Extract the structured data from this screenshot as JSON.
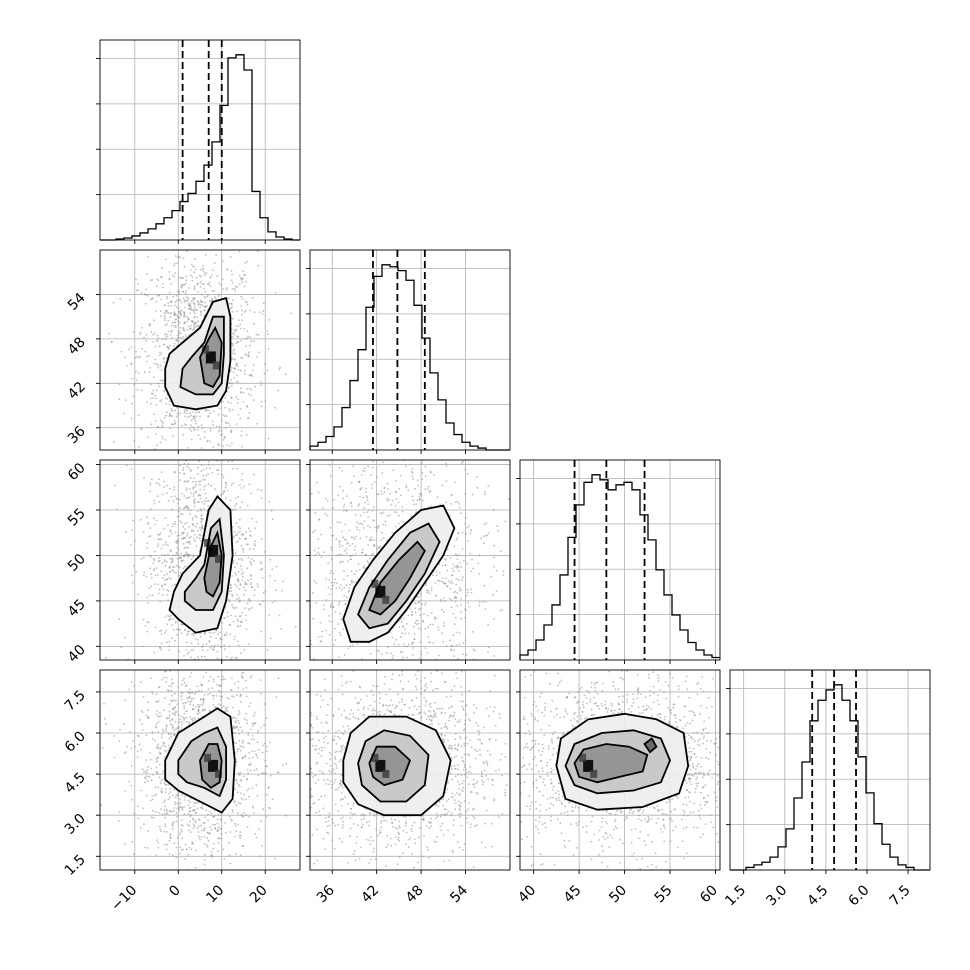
{
  "chart_data": {
    "type": "corner",
    "title": "",
    "parameters": [
      {
        "range": [
          -18,
          28
        ],
        "ticks": [
          -10,
          0,
          10,
          20
        ],
        "tick_labels": [
          "−10",
          "0",
          "10",
          "20"
        ],
        "quantiles": [
          1,
          7,
          10
        ],
        "peak": 8,
        "sigma": 5
      },
      {
        "range": [
          33,
          60
        ],
        "ticks": [
          36,
          42,
          48,
          54
        ],
        "tick_labels": [
          "36",
          "42",
          "48",
          "54"
        ],
        "quantiles": [
          41.5,
          44.8,
          48.5
        ],
        "peak": 44,
        "sigma": 4
      },
      {
        "range": [
          38.5,
          60.5
        ],
        "ticks": [
          40,
          45,
          50,
          55,
          60
        ],
        "tick_labels": [
          "40",
          "45",
          "50",
          "55",
          "60"
        ],
        "quantiles": [
          44.5,
          48,
          52.2
        ],
        "peak": 47.5,
        "sigma": 4
      },
      {
        "range": [
          1,
          8.3
        ],
        "ticks": [
          1.5,
          3.0,
          4.5,
          6.0,
          7.5
        ],
        "tick_labels": [
          "1.5",
          "3.0",
          "4.5",
          "6.0",
          "7.5"
        ],
        "quantiles": [
          4.0,
          4.8,
          5.6
        ],
        "peak": 4.8,
        "sigma": 0.8
      }
    ],
    "histograms": [
      {
        "edges_start": -18,
        "bin_width": 1.84,
        "counts": [
          0,
          0,
          1,
          2,
          4,
          7,
          11,
          16,
          22,
          29,
          38,
          46,
          58,
          74,
          97,
          133,
          180,
          183,
          168,
          48,
          22,
          8,
          3,
          1,
          0
        ]
      },
      {
        "edges_start": 33,
        "bin_width": 1.08,
        "counts": [
          2,
          4,
          7,
          12,
          22,
          36,
          52,
          74,
          90,
          96,
          95,
          93,
          88,
          75,
          58,
          40,
          26,
          14,
          8,
          4,
          2,
          1,
          0,
          0,
          0
        ]
      },
      {
        "edges_start": 38.5,
        "bin_width": 0.88,
        "counts": [
          2,
          4,
          8,
          14,
          22,
          34,
          49,
          62,
          71,
          74,
          72,
          68,
          70,
          71,
          68,
          58,
          48,
          36,
          26,
          18,
          12,
          7,
          4,
          2,
          1
        ]
      },
      {
        "edges_start": 1,
        "bin_width": 0.292,
        "counts": [
          0,
          0,
          1,
          2,
          3,
          5,
          9,
          16,
          28,
          42,
          58,
          66,
          70,
          72,
          66,
          58,
          44,
          30,
          18,
          10,
          5,
          2,
          1,
          0,
          0
        ]
      }
    ],
    "density_panels": [
      {
        "row": 1,
        "col": 0,
        "center": [
          7.5,
          45.5
        ],
        "contours": [
          [
            [
              -2,
              46
            ],
            [
              1,
              47.5
            ],
            [
              5,
              49.5
            ],
            [
              8,
              53
            ],
            [
              11,
              53.5
            ],
            [
              12,
              51
            ],
            [
              12,
              45
            ],
            [
              11,
              41
            ],
            [
              9,
              39
            ],
            [
              4,
              38.5
            ],
            [
              -1,
              39
            ],
            [
              -3,
              41.5
            ],
            [
              -3,
              44
            ]
          ],
          [
            [
              1,
              44
            ],
            [
              3,
              45.5
            ],
            [
              6,
              47.5
            ],
            [
              8,
              51
            ],
            [
              10.5,
              51
            ],
            [
              10.5,
              46
            ],
            [
              10,
              42
            ],
            [
              8,
              40.5
            ],
            [
              4,
              40.5
            ],
            [
              0.5,
              41.5
            ]
          ],
          [
            [
              5,
              45.5
            ],
            [
              7,
              48
            ],
            [
              8.5,
              49.5
            ],
            [
              10,
              47.5
            ],
            [
              9.5,
              43
            ],
            [
              8,
              41.5
            ],
            [
              6,
              42
            ]
          ]
        ]
      },
      {
        "row": 2,
        "col": 0,
        "center": [
          8,
          50.5
        ],
        "contours": [
          [
            [
              -1,
              46
            ],
            [
              1,
              48
            ],
            [
              5,
              50
            ],
            [
              7,
              55
            ],
            [
              9,
              56.5
            ],
            [
              12,
              55
            ],
            [
              12.5,
              50
            ],
            [
              11,
              45
            ],
            [
              9,
              42
            ],
            [
              4,
              41.5
            ],
            [
              0,
              43
            ],
            [
              -2,
              44
            ]
          ],
          [
            [
              1.5,
              46
            ],
            [
              4,
              47.5
            ],
            [
              6,
              49
            ],
            [
              7.5,
              53
            ],
            [
              9.5,
              54
            ],
            [
              10.5,
              50
            ],
            [
              10,
              46
            ],
            [
              8,
              44
            ],
            [
              4,
              44
            ],
            [
              1.5,
              45
            ]
          ],
          [
            [
              6,
              47.5
            ],
            [
              7.5,
              51
            ],
            [
              9,
              52.5
            ],
            [
              10,
              50
            ],
            [
              9.5,
              47
            ],
            [
              8,
              45.5
            ],
            [
              6.5,
              46
            ]
          ]
        ]
      },
      {
        "row": 2,
        "col": 1,
        "center": [
          42.5,
          46
        ],
        "contours": [
          [
            [
              37.5,
              43
            ],
            [
              39,
              46.5
            ],
            [
              41.5,
              49.5
            ],
            [
              44.5,
              52.5
            ],
            [
              48,
              55
            ],
            [
              51,
              55.5
            ],
            [
              52.5,
              53
            ],
            [
              51,
              50
            ],
            [
              48.5,
              47
            ],
            [
              46,
              44
            ],
            [
              43.5,
              41.5
            ],
            [
              41,
              40.5
            ],
            [
              38.5,
              40.5
            ]
          ],
          [
            [
              39.5,
              43.5
            ],
            [
              41,
              46.5
            ],
            [
              43.5,
              49.5
            ],
            [
              46.5,
              52.5
            ],
            [
              49,
              53.5
            ],
            [
              50.5,
              51.5
            ],
            [
              48.5,
              48
            ],
            [
              46,
              45
            ],
            [
              43.5,
              42.5
            ],
            [
              41,
              42
            ]
          ],
          [
            [
              41,
              44
            ],
            [
              42.5,
              47
            ],
            [
              45,
              49.5
            ],
            [
              47.5,
              51.5
            ],
            [
              48.5,
              50.5
            ],
            [
              46.5,
              47.5
            ],
            [
              44.5,
              45
            ],
            [
              42.5,
              43.5
            ]
          ]
        ]
      },
      {
        "row": 3,
        "col": 0,
        "center": [
          8,
          4.8
        ],
        "contours": [
          [
            [
              -3,
              5
            ],
            [
              0,
              6
            ],
            [
              4,
              6.4
            ],
            [
              9,
              6.9
            ],
            [
              12,
              6.6
            ],
            [
              13,
              5
            ],
            [
              12.5,
              3.6
            ],
            [
              10,
              3.1
            ],
            [
              5,
              3.5
            ],
            [
              0,
              3.9
            ],
            [
              -3,
              4.3
            ]
          ],
          [
            [
              0,
              5
            ],
            [
              3,
              5.7
            ],
            [
              6,
              6
            ],
            [
              9,
              6.2
            ],
            [
              11,
              5.5
            ],
            [
              11,
              4.3
            ],
            [
              9.5,
              3.7
            ],
            [
              6,
              4
            ],
            [
              2,
              4.2
            ],
            [
              0,
              4.5
            ]
          ],
          [
            [
              5,
              5
            ],
            [
              7,
              5.6
            ],
            [
              9,
              5.6
            ],
            [
              10,
              5
            ],
            [
              9.5,
              4.2
            ],
            [
              7.5,
              4
            ],
            [
              5.5,
              4.3
            ]
          ]
        ]
      },
      {
        "row": 3,
        "col": 1,
        "center": [
          42.5,
          4.8
        ],
        "contours": [
          [
            [
              37.5,
              5
            ],
            [
              38.5,
              6
            ],
            [
              41,
              6.6
            ],
            [
              46,
              6.6
            ],
            [
              50,
              6.1
            ],
            [
              52,
              5
            ],
            [
              51,
              3.7
            ],
            [
              48,
              3.0
            ],
            [
              43,
              3.0
            ],
            [
              39.5,
              3.4
            ],
            [
              37.5,
              4.2
            ]
          ],
          [
            [
              39.5,
              4.9
            ],
            [
              40.5,
              5.7
            ],
            [
              43,
              6.1
            ],
            [
              46.5,
              5.9
            ],
            [
              49,
              5.2
            ],
            [
              48.5,
              4.1
            ],
            [
              46,
              3.5
            ],
            [
              42.5,
              3.5
            ],
            [
              40,
              4.1
            ]
          ],
          [
            [
              41,
              4.9
            ],
            [
              42,
              5.5
            ],
            [
              44.5,
              5.5
            ],
            [
              46.5,
              5
            ],
            [
              45.5,
              4.3
            ],
            [
              43,
              4.1
            ],
            [
              41.5,
              4.4
            ]
          ]
        ]
      },
      {
        "row": 3,
        "col": 2,
        "center": [
          46,
          4.8
        ],
        "contours": [
          [
            [
              42.5,
              4.8
            ],
            [
              43,
              5.8
            ],
            [
              46,
              6.5
            ],
            [
              50,
              6.7
            ],
            [
              53.5,
              6.5
            ],
            [
              56.5,
              6
            ],
            [
              57,
              4.8
            ],
            [
              56,
              3.8
            ],
            [
              52,
              3.3
            ],
            [
              47,
              3.2
            ],
            [
              43.5,
              3.6
            ]
          ],
          [
            [
              43.5,
              4.8
            ],
            [
              44.5,
              5.6
            ],
            [
              47.5,
              6
            ],
            [
              51,
              6.1
            ],
            [
              54,
              5.8
            ],
            [
              55,
              5
            ],
            [
              54,
              4.2
            ],
            [
              51,
              3.9
            ],
            [
              47,
              3.8
            ],
            [
              44.5,
              4.1
            ]
          ],
          [
            [
              44.5,
              4.9
            ],
            [
              45.5,
              5.4
            ],
            [
              48,
              5.6
            ],
            [
              50.5,
              5.5
            ],
            [
              52.5,
              5.2
            ],
            [
              52,
              4.6
            ],
            [
              49.5,
              4.4
            ],
            [
              47,
              4.2
            ],
            [
              45,
              4.4
            ]
          ],
          [
            [
              52.2,
              5.6
            ],
            [
              53,
              5.8
            ],
            [
              53.5,
              5.5
            ],
            [
              52.8,
              5.3
            ]
          ]
        ]
      }
    ]
  }
}
